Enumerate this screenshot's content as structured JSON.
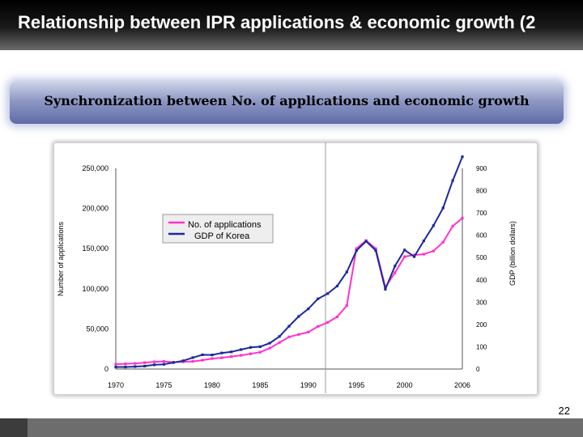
{
  "slide": {
    "title": "Relationship between IPR applications & economic growth (2",
    "subtitle": "Synchronization between  No. of applications and economic growth",
    "page_number": "22"
  },
  "chart_data": {
    "type": "line",
    "title": "",
    "xlabel": "",
    "ylabel_left": "Number of applications",
    "ylabel_right": "GDP (billion dollars)",
    "x_ticks": [
      "1970",
      "1975",
      "1980",
      "1985",
      "1990",
      "1995",
      "2000",
      "2006"
    ],
    "xlim": [
      1970,
      2006
    ],
    "y_left_ticks": [
      "0",
      "50,000",
      "100,000",
      "150,000",
      "200,000",
      "250,000"
    ],
    "y_left_lim": [
      0,
      250000
    ],
    "y_right_ticks": [
      "0",
      "100",
      "200",
      "300",
      "400",
      "500",
      "600",
      "700",
      "800",
      "900"
    ],
    "y_right_lim": [
      0,
      900
    ],
    "grid": false,
    "legend_position": "top-left-center",
    "series": [
      {
        "name": "No. of applications",
        "axis": "left",
        "color": "#ff33cc",
        "x": [
          1970,
          1971,
          1972,
          1973,
          1974,
          1975,
          1976,
          1977,
          1978,
          1979,
          1980,
          1981,
          1982,
          1983,
          1984,
          1985,
          1986,
          1987,
          1988,
          1989,
          1990,
          1991,
          1992,
          1993,
          1994,
          1995,
          1996,
          1997,
          1998,
          1999,
          2000,
          2001,
          2002,
          2003,
          2004,
          2005,
          2006
        ],
        "values": [
          6000,
          6500,
          7000,
          8000,
          9000,
          9500,
          8500,
          9000,
          9500,
          11000,
          13000,
          14000,
          15500,
          17000,
          19000,
          21000,
          26000,
          33000,
          40000,
          43000,
          46000,
          53000,
          58000,
          65000,
          79000,
          150000,
          160000,
          150000,
          102000,
          120000,
          140000,
          142000,
          143000,
          147000,
          158000,
          178000,
          188000
        ]
      },
      {
        "name": "GDP of Korea",
        "axis": "right",
        "color": "#1a2a9c",
        "x": [
          1970,
          1971,
          1972,
          1973,
          1974,
          1975,
          1976,
          1977,
          1978,
          1979,
          1980,
          1981,
          1982,
          1983,
          1984,
          1985,
          1986,
          1987,
          1988,
          1989,
          1990,
          1991,
          1992,
          1993,
          1994,
          1995,
          1996,
          1997,
          1998,
          1999,
          2000,
          2001,
          2002,
          2003,
          2004,
          2005,
          2006
        ],
        "values": [
          9,
          9,
          11,
          13,
          19,
          21,
          29,
          37,
          51,
          64,
          63,
          72,
          77,
          87,
          97,
          100,
          116,
          146,
          192,
          236,
          270,
          315,
          338,
          372,
          435,
          531,
          573,
          532,
          358,
          462,
          534,
          504,
          575,
          643,
          722,
          845,
          952
        ]
      }
    ]
  }
}
